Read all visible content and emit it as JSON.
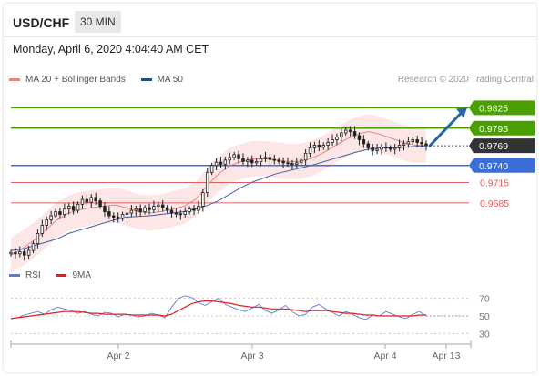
{
  "header": {
    "symbol": "USD/CHF",
    "interval": "30 MIN",
    "timestamp": "Monday, April 6, 2020 4:04:40 AM CET"
  },
  "legend": {
    "items": [
      {
        "label": "MA 20 + Bollinger Bands",
        "color": "#f08080"
      },
      {
        "label": "MA 50",
        "color": "#1f4e8c"
      }
    ],
    "credit": "Research © 2020 Trading Central"
  },
  "rsi_legend": {
    "items": [
      {
        "label": "RSI",
        "color": "#5b7fd6"
      },
      {
        "label": "9MA",
        "color": "#e02020"
      }
    ]
  },
  "colors": {
    "resistance": "#4aa000",
    "support": "#e06060",
    "pivot": "#3b6fd8",
    "current": "#333333",
    "arrow": "#2a64ad",
    "candle": "#222222"
  },
  "chart_data": [
    {
      "type": "candlestick",
      "title": "USD/CHF 30 MIN",
      "ylim": [
        0.9595,
        0.9855
      ],
      "x_ticks": [
        "Apr 2",
        "Apr 3",
        "Apr 4",
        "Apr 13"
      ],
      "levels": [
        {
          "value": 0.9825,
          "label": "0.9825",
          "kind": "resistance"
        },
        {
          "value": 0.9795,
          "label": "0.9795",
          "kind": "resistance"
        },
        {
          "value": 0.9769,
          "label": "0.9769",
          "kind": "current"
        },
        {
          "value": 0.974,
          "label": "0.9740",
          "kind": "pivot"
        },
        {
          "value": 0.9715,
          "label": "0.9715",
          "kind": "support"
        },
        {
          "value": 0.9685,
          "label": "0.9685",
          "kind": "support"
        }
      ],
      "close_series": [
        0.9612,
        0.961,
        0.9613,
        0.9608,
        0.9615,
        0.9625,
        0.964,
        0.9652,
        0.966,
        0.9666,
        0.9672,
        0.9668,
        0.9676,
        0.968,
        0.9674,
        0.9683,
        0.969,
        0.9686,
        0.9693,
        0.9688,
        0.968,
        0.9672,
        0.9666,
        0.9664,
        0.9662,
        0.9668,
        0.967,
        0.9674,
        0.9676,
        0.9672,
        0.9678,
        0.9675,
        0.968,
        0.9682,
        0.9678,
        0.9674,
        0.967,
        0.9669,
        0.9668,
        0.9672,
        0.9676,
        0.9674,
        0.968,
        0.97,
        0.973,
        0.974,
        0.9745,
        0.9742,
        0.9748,
        0.9752,
        0.9756,
        0.975,
        0.9746,
        0.9748,
        0.9744,
        0.9746,
        0.975,
        0.9752,
        0.9749,
        0.9748,
        0.9746,
        0.9744,
        0.9743,
        0.9742,
        0.9744,
        0.9748,
        0.9758,
        0.9766,
        0.977,
        0.9767,
        0.977,
        0.9774,
        0.9778,
        0.9782,
        0.9788,
        0.9792,
        0.979,
        0.9784,
        0.9778,
        0.9772,
        0.9766,
        0.9762,
        0.9764,
        0.9767,
        0.9766,
        0.9764,
        0.9766,
        0.977,
        0.9772,
        0.9775,
        0.9778,
        0.9774,
        0.9772,
        0.977
      ],
      "ma50_series": [
        0.9615,
        0.9617,
        0.9622,
        0.9627,
        0.9632,
        0.964,
        0.9645,
        0.965,
        0.9655,
        0.966,
        0.9664,
        0.9665,
        0.9666,
        0.9668,
        0.967,
        0.9672,
        0.9676,
        0.9681,
        0.9688,
        0.9698,
        0.9708,
        0.9716,
        0.9722,
        0.9728,
        0.9732,
        0.9736,
        0.974,
        0.9745,
        0.975,
        0.9755,
        0.976,
        0.9764,
        0.9766,
        0.9766,
        0.9767,
        0.9768,
        0.9769
      ],
      "ma20_series": [
        0.9608,
        0.9618,
        0.963,
        0.9645,
        0.966,
        0.967,
        0.9675,
        0.9678,
        0.968,
        0.9682,
        0.9678,
        0.9672,
        0.967,
        0.9672,
        0.9676,
        0.968,
        0.969,
        0.971,
        0.9728,
        0.974,
        0.9746,
        0.975,
        0.975,
        0.9748,
        0.9746,
        0.9746,
        0.975,
        0.9758,
        0.9768,
        0.9778,
        0.9786,
        0.979,
        0.9786,
        0.978,
        0.9774,
        0.977,
        0.977
      ],
      "forecast_arrow": {
        "from": 0.9769,
        "to": 0.9825
      }
    },
    {
      "type": "line",
      "title": "RSI",
      "ylim": [
        20,
        80
      ],
      "y_ticks": [
        70,
        50,
        30
      ],
      "series": [
        {
          "name": "RSI",
          "values": [
            47,
            48,
            51,
            53,
            55,
            52,
            57,
            60,
            58,
            56,
            53,
            55,
            52,
            50,
            54,
            53,
            49,
            52,
            51,
            49,
            50,
            53,
            51,
            48,
            60,
            70,
            73,
            71,
            65,
            62,
            66,
            70,
            63,
            60,
            57,
            55,
            59,
            63,
            56,
            53,
            57,
            62,
            55,
            50,
            52,
            60,
            63,
            58,
            54,
            50,
            55,
            52,
            48,
            46,
            51,
            50,
            55,
            52,
            49,
            47,
            52,
            55,
            50
          ]
        },
        {
          "name": "9MA",
          "values": [
            47,
            48,
            49,
            50,
            51,
            52,
            53,
            54,
            55,
            55,
            55,
            54,
            53,
            53,
            52,
            52,
            52,
            52,
            51,
            51,
            51,
            51,
            51,
            50,
            52,
            56,
            60,
            64,
            66,
            67,
            67,
            66,
            65,
            64,
            62,
            61,
            60,
            60,
            59,
            58,
            58,
            58,
            57,
            56,
            55,
            56,
            56,
            56,
            55,
            54,
            53,
            53,
            52,
            51,
            51,
            50,
            50,
            50,
            50,
            50,
            50,
            51,
            51
          ]
        }
      ]
    }
  ]
}
